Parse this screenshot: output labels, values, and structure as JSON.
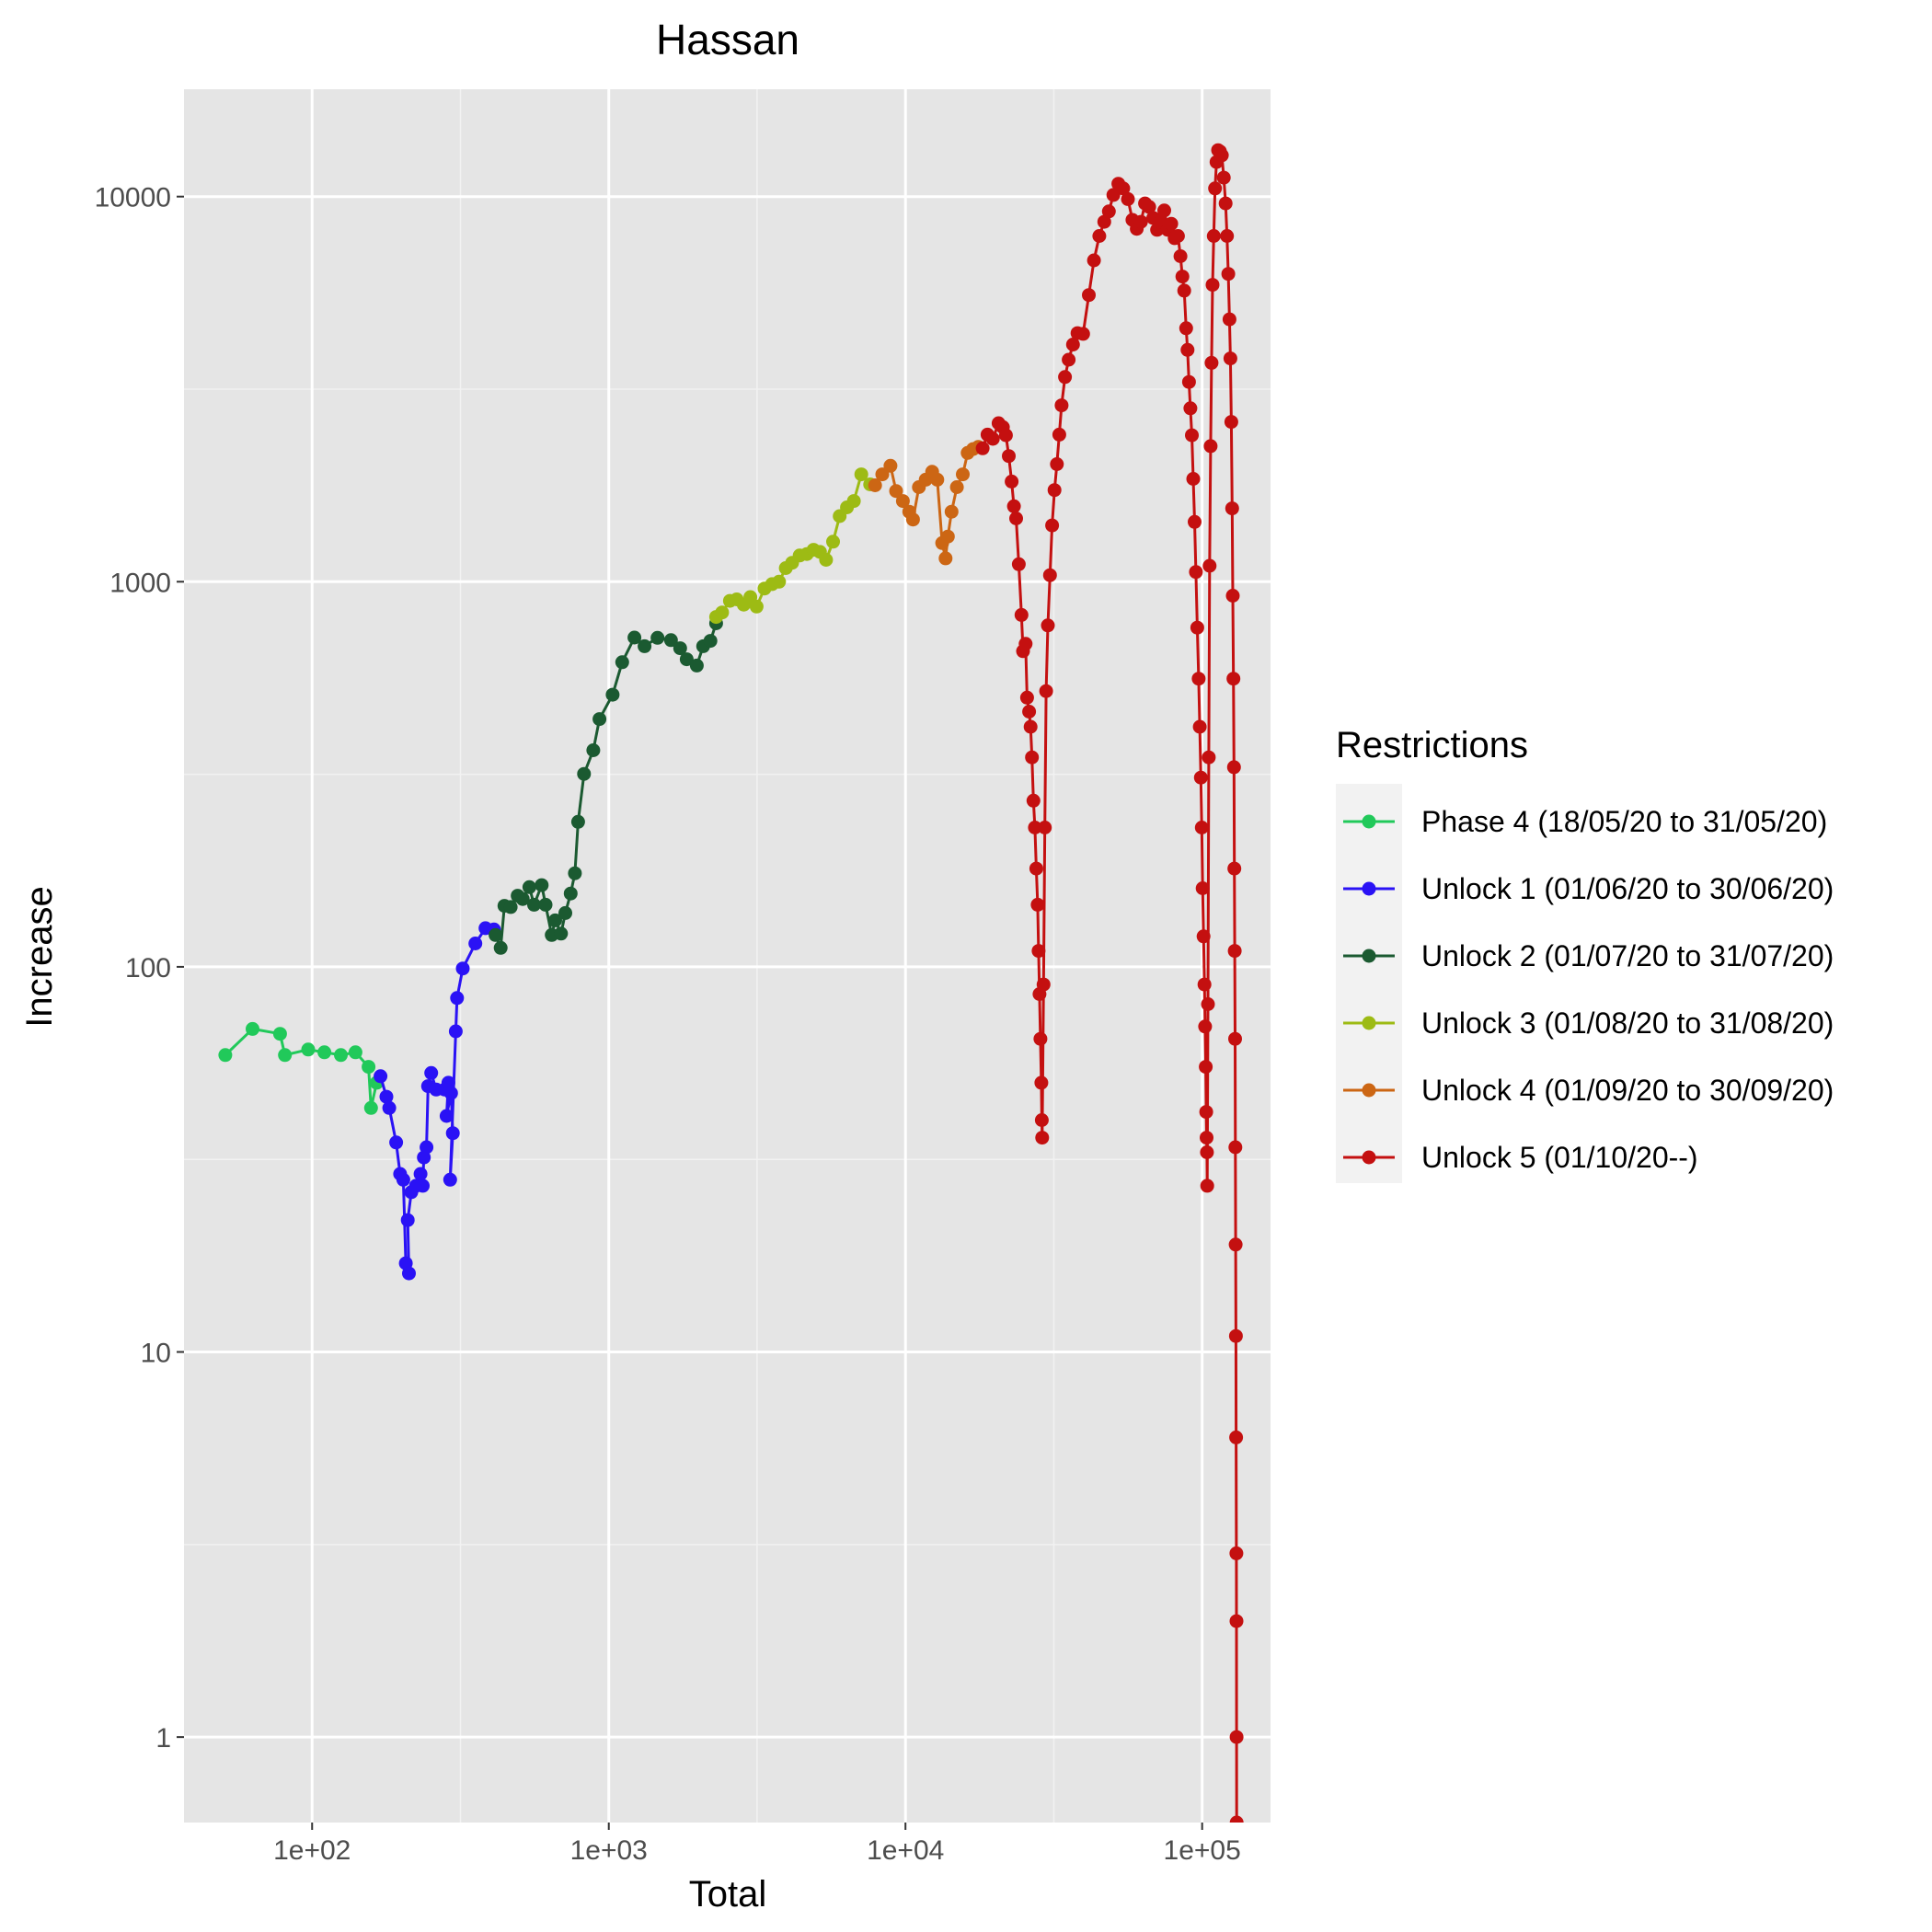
{
  "chart_data": {
    "type": "line",
    "title": "Hassan",
    "xlabel": "Total",
    "ylabel": "Increase",
    "x_scale": "log10",
    "y_scale": "log10",
    "xlim": [
      37,
      170000
    ],
    "ylim": [
      0.6,
      19000
    ],
    "grid": true,
    "legend_position": "right",
    "x_ticks": [
      {
        "value": 100,
        "label": "1e+02"
      },
      {
        "value": 1000,
        "label": "1e+03"
      },
      {
        "value": 10000,
        "label": "1e+04"
      },
      {
        "value": 100000,
        "label": "1e+05"
      }
    ],
    "y_ticks": [
      {
        "value": 1,
        "label": "1"
      },
      {
        "value": 10,
        "label": "10"
      },
      {
        "value": 100,
        "label": "100"
      },
      {
        "value": 1000,
        "label": "1000"
      },
      {
        "value": 10000,
        "label": "10000"
      }
    ],
    "legend": {
      "title": "Restrictions"
    },
    "series": [
      {
        "name": "Phase 4 (18/05/20 to 31/05/20)",
        "color": "#21c95a",
        "points": [
          [
            51,
            59
          ],
          [
            63,
            69
          ],
          [
            78,
            67
          ],
          [
            81,
            59
          ],
          [
            97,
            61
          ],
          [
            110,
            60
          ],
          [
            125,
            59
          ],
          [
            140,
            60
          ],
          [
            155,
            55
          ],
          [
            158,
            43
          ],
          [
            165,
            50
          ]
        ]
      },
      {
        "name": "Unlock 1 (01/06/20 to 30/06/20)",
        "color": "#2a12f5",
        "points": [
          [
            170,
            52
          ],
          [
            178,
            46
          ],
          [
            182,
            43
          ],
          [
            192,
            35
          ],
          [
            198,
            29
          ],
          [
            203,
            28
          ],
          [
            207,
            17
          ],
          [
            212,
            16
          ],
          [
            210,
            22
          ],
          [
            216,
            26
          ],
          [
            224,
            27
          ],
          [
            232,
            29
          ],
          [
            236,
            27
          ],
          [
            238,
            32
          ],
          [
            243,
            34
          ],
          [
            246,
            49
          ],
          [
            252,
            53
          ],
          [
            262,
            48
          ],
          [
            280,
            48
          ],
          [
            288,
            50
          ],
          [
            284,
            41
          ],
          [
            294,
            47
          ],
          [
            298,
            37
          ],
          [
            292,
            28
          ],
          [
            305,
            68
          ],
          [
            308,
            83
          ],
          [
            322,
            99
          ],
          [
            355,
            115
          ],
          [
            384,
            126
          ],
          [
            410,
            125
          ]
        ]
      },
      {
        "name": "Unlock 2 (01/07/20 to 31/07/20)",
        "color": "#1b5a31",
        "points": [
          [
            415,
            121
          ],
          [
            432,
            112
          ],
          [
            445,
            144
          ],
          [
            467,
            143
          ],
          [
            493,
            153
          ],
          [
            513,
            150
          ],
          [
            540,
            161
          ],
          [
            560,
            145
          ],
          [
            594,
            163
          ],
          [
            612,
            145
          ],
          [
            642,
            121
          ],
          [
            660,
            132
          ],
          [
            690,
            122
          ],
          [
            714,
            138
          ],
          [
            744,
            155
          ],
          [
            769,
            175
          ],
          [
            788,
            238
          ],
          [
            825,
            317
          ],
          [
            887,
            365
          ],
          [
            930,
            440
          ],
          [
            1030,
            509
          ],
          [
            1110,
            618
          ],
          [
            1220,
            716
          ],
          [
            1320,
            680
          ],
          [
            1460,
            715
          ],
          [
            1620,
            705
          ],
          [
            1740,
            672
          ],
          [
            1830,
            629
          ],
          [
            1980,
            606
          ],
          [
            2080,
            680
          ],
          [
            2200,
            702
          ],
          [
            2300,
            780
          ]
        ]
      },
      {
        "name": "Unlock 3 (01/08/20 to 31/08/20)",
        "color": "#9dbb14",
        "points": [
          [
            2300,
            810
          ],
          [
            2410,
            832
          ],
          [
            2560,
            892
          ],
          [
            2700,
            900
          ],
          [
            2850,
            872
          ],
          [
            3000,
            912
          ],
          [
            3150,
            862
          ],
          [
            3350,
            960
          ],
          [
            3550,
            986
          ],
          [
            3750,
            1000
          ],
          [
            3950,
            1085
          ],
          [
            4150,
            1120
          ],
          [
            4400,
            1170
          ],
          [
            4650,
            1180
          ],
          [
            4900,
            1210
          ],
          [
            5150,
            1195
          ],
          [
            5400,
            1140
          ],
          [
            5700,
            1270
          ],
          [
            6000,
            1480
          ],
          [
            6350,
            1560
          ],
          [
            6700,
            1620
          ],
          [
            7100,
            1900
          ],
          [
            7600,
            1790
          ]
        ]
      },
      {
        "name": "Unlock 4 (01/09/20 to 30/09/20)",
        "color": "#cc6614",
        "points": [
          [
            7900,
            1780
          ],
          [
            8350,
            1900
          ],
          [
            8900,
            2000
          ],
          [
            9300,
            1720
          ],
          [
            9800,
            1620
          ],
          [
            10300,
            1520
          ],
          [
            10600,
            1450
          ],
          [
            11100,
            1760
          ],
          [
            11700,
            1840
          ],
          [
            12300,
            1930
          ],
          [
            12800,
            1840
          ],
          [
            13300,
            1260
          ],
          [
            13650,
            1150
          ],
          [
            13900,
            1310
          ],
          [
            14300,
            1520
          ],
          [
            14900,
            1760
          ],
          [
            15600,
            1900
          ],
          [
            16200,
            2160
          ],
          [
            16900,
            2210
          ],
          [
            17600,
            2240
          ]
        ]
      },
      {
        "name": "Unlock 5 (01/10/20--)",
        "color": "#c41010",
        "points": [
          [
            18200,
            2220
          ],
          [
            18900,
            2410
          ],
          [
            19700,
            2350
          ],
          [
            20600,
            2580
          ],
          [
            21300,
            2520
          ],
          [
            21800,
            2400
          ],
          [
            22300,
            2120
          ],
          [
            22800,
            1820
          ],
          [
            23200,
            1570
          ],
          [
            23600,
            1460
          ],
          [
            24100,
            1110
          ],
          [
            24600,
            820
          ],
          [
            24900,
            660
          ],
          [
            25400,
            690
          ],
          [
            25700,
            500
          ],
          [
            26100,
            460
          ],
          [
            26400,
            420
          ],
          [
            26700,
            350
          ],
          [
            27000,
            270
          ],
          [
            27300,
            230
          ],
          [
            27600,
            180
          ],
          [
            27900,
            145
          ],
          [
            28100,
            110
          ],
          [
            28300,
            85
          ],
          [
            28500,
            65
          ],
          [
            28700,
            50
          ],
          [
            28800,
            40
          ],
          [
            28900,
            36
          ],
          [
            29200,
            90
          ],
          [
            29500,
            230
          ],
          [
            29800,
            520
          ],
          [
            30200,
            770
          ],
          [
            30700,
            1040
          ],
          [
            31200,
            1400
          ],
          [
            31800,
            1730
          ],
          [
            32400,
            2020
          ],
          [
            33000,
            2410
          ],
          [
            33600,
            2870
          ],
          [
            34500,
            3400
          ],
          [
            35500,
            3770
          ],
          [
            36700,
            4130
          ],
          [
            38000,
            4420
          ],
          [
            39700,
            4400
          ],
          [
            41500,
            5550
          ],
          [
            43200,
            6830
          ],
          [
            45000,
            7900
          ],
          [
            46800,
            8600
          ],
          [
            48500,
            9150
          ],
          [
            50200,
            10100
          ],
          [
            52200,
            10800
          ],
          [
            54200,
            10500
          ],
          [
            56200,
            9850
          ],
          [
            58200,
            8700
          ],
          [
            60200,
            8250
          ],
          [
            62200,
            8600
          ],
          [
            64200,
            9600
          ],
          [
            66300,
            9400
          ],
          [
            68400,
            8800
          ],
          [
            70500,
            8200
          ],
          [
            72500,
            8600
          ],
          [
            74500,
            9200
          ],
          [
            76600,
            8200
          ],
          [
            78700,
            8500
          ],
          [
            80800,
            7800
          ],
          [
            82900,
            7900
          ],
          [
            84500,
            7000
          ],
          [
            85800,
            6200
          ],
          [
            87000,
            5700
          ],
          [
            88300,
            4550
          ],
          [
            89300,
            4000
          ],
          [
            90300,
            3300
          ],
          [
            91300,
            2820
          ],
          [
            92300,
            2400
          ],
          [
            93300,
            1850
          ],
          [
            94300,
            1430
          ],
          [
            95300,
            1060
          ],
          [
            96300,
            760
          ],
          [
            97300,
            560
          ],
          [
            98200,
            420
          ],
          [
            99000,
            310
          ],
          [
            99700,
            230
          ],
          [
            100400,
            160
          ],
          [
            101100,
            120
          ],
          [
            101800,
            90
          ],
          [
            102300,
            70
          ],
          [
            102800,
            55
          ],
          [
            103200,
            42
          ],
          [
            103500,
            36
          ],
          [
            103800,
            33
          ],
          [
            104000,
            27
          ],
          [
            104600,
            80
          ],
          [
            105300,
            350
          ],
          [
            106000,
            1100
          ],
          [
            106800,
            2250
          ],
          [
            107600,
            3700
          ],
          [
            108400,
            5900
          ],
          [
            109400,
            7900
          ],
          [
            110500,
            10500
          ],
          [
            111800,
            12300
          ],
          [
            113200,
            13200
          ],
          [
            114800,
            13100
          ],
          [
            116500,
            12800
          ],
          [
            118300,
            11200
          ],
          [
            120000,
            9600
          ],
          [
            121300,
            7900
          ],
          [
            122500,
            6300
          ],
          [
            123600,
            4800
          ],
          [
            124500,
            3800
          ],
          [
            125400,
            2600
          ],
          [
            126200,
            1550
          ],
          [
            126900,
            920
          ],
          [
            127500,
            560
          ],
          [
            128000,
            330
          ],
          [
            128400,
            180
          ],
          [
            128800,
            110
          ],
          [
            129100,
            65
          ],
          [
            129400,
            34
          ],
          [
            129700,
            19
          ],
          [
            130000,
            11
          ],
          [
            130200,
            6
          ],
          [
            130400,
            3
          ],
          [
            130500,
            2
          ],
          [
            130600,
            1
          ],
          [
            130700,
            0.6
          ]
        ]
      }
    ]
  }
}
